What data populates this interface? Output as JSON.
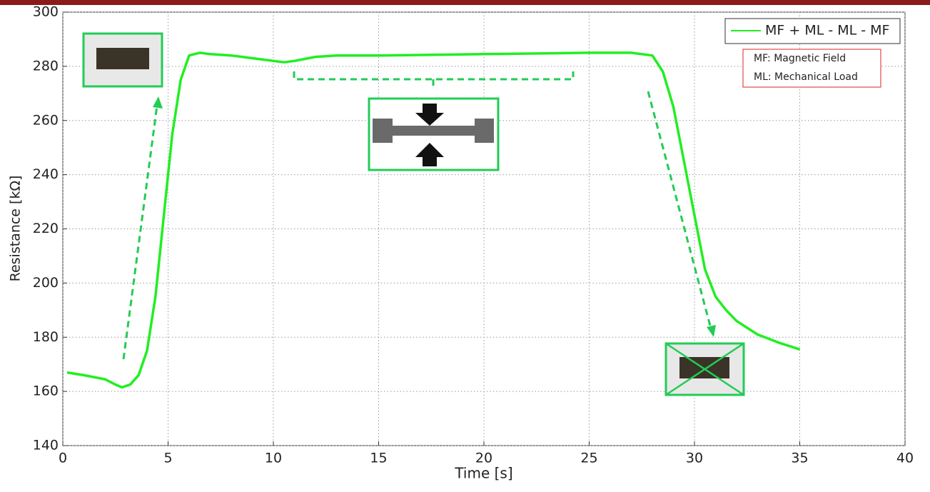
{
  "chart_data": {
    "type": "line",
    "xlabel": "Time [s]",
    "ylabel": "Resistance [kΩ]",
    "xlim": [
      0,
      40
    ],
    "xticks": [
      0,
      5,
      10,
      15,
      20,
      25,
      30,
      35,
      40
    ],
    "ylim": [
      140,
      300
    ],
    "yticks": [
      140,
      160,
      180,
      200,
      220,
      240,
      260,
      280,
      300
    ],
    "grid": true,
    "legend": "upper right",
    "series": [
      {
        "name": "MF + ML - ML - MF",
        "color": "#22ee22",
        "x": [
          0.2,
          1,
          2,
          2.5,
          2.8,
          3.2,
          3.6,
          4,
          4.4,
          4.8,
          5.2,
          5.6,
          6,
          6.5,
          7,
          8,
          9,
          10,
          10.5,
          11,
          12,
          13,
          15,
          20,
          25,
          27,
          28,
          28.5,
          29,
          29.5,
          30,
          30.5,
          31,
          31.5,
          32,
          33,
          34,
          35
        ],
        "values": [
          167,
          166,
          164.5,
          162.5,
          161.5,
          162.5,
          166,
          175,
          195,
          225,
          255,
          275,
          284,
          285,
          284.5,
          284,
          283,
          282,
          281.5,
          282,
          283.5,
          284,
          284,
          284.5,
          285,
          285,
          284,
          278,
          265,
          245,
          225,
          205,
          195,
          190,
          186,
          181,
          178,
          175.5
        ]
      }
    ],
    "annotations": [
      "MF: Magnetic Field",
      "ML: Mechanical Load"
    ]
  }
}
